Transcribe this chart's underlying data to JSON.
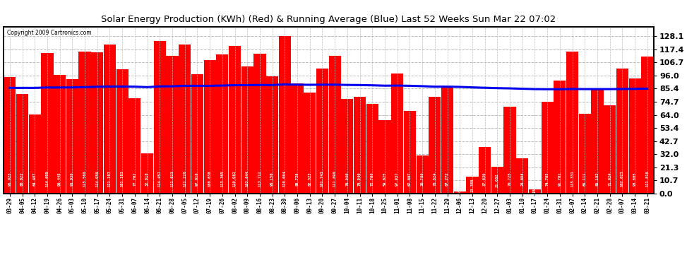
{
  "title": "Solar Energy Production (KWh) (Red) & Running Average (Blue) Last 52 Weeks Sun Mar 22 07:02",
  "copyright": "Copyright 2009 Cartronics.com",
  "bar_color": "#ff0000",
  "avg_line_color": "#0000ee",
  "background_color": "#ffffff",
  "grid_color": "#bbbbbb",
  "ylim": [
    0,
    136
  ],
  "yticks": [
    0.0,
    10.7,
    21.3,
    32.0,
    42.7,
    53.4,
    64.0,
    74.7,
    85.4,
    96.0,
    106.7,
    117.4,
    128.1
  ],
  "labels": [
    "03-29",
    "04-05",
    "04-12",
    "04-19",
    "04-26",
    "05-03",
    "05-10",
    "05-17",
    "05-24",
    "05-31",
    "06-07",
    "06-14",
    "06-21",
    "06-28",
    "07-05",
    "07-12",
    "07-19",
    "07-26",
    "08-02",
    "08-09",
    "08-16",
    "08-23",
    "08-30",
    "09-06",
    "09-13",
    "09-20",
    "09-27",
    "10-04",
    "10-11",
    "10-18",
    "10-25",
    "11-01",
    "11-08",
    "11-15",
    "11-22",
    "11-29",
    "12-06",
    "12-13",
    "12-20",
    "12-27",
    "01-03",
    "01-10",
    "01-17",
    "01-24",
    "01-31",
    "02-07",
    "02-14",
    "02-21",
    "02-28",
    "03-07",
    "03-14",
    "03-21"
  ],
  "values": [
    95.023,
    80.822,
    64.487,
    114.699,
    96.445,
    93.03,
    115.568,
    114.958,
    121.107,
    101.183,
    77.762,
    32.818,
    124.457,
    111.823,
    121.22,
    97.016,
    108.638,
    113.365,
    119.982,
    103.644,
    113.712,
    95.156,
    128.064,
    89.729,
    82.323,
    101.743,
    111.89,
    76.94,
    78.94,
    72.76,
    59.625,
    97.937,
    67.087,
    30.78,
    78.824,
    87.272,
    1.65,
    13.388,
    37.639,
    21.682,
    70.725,
    28.698,
    3.45,
    74.705,
    91.761,
    115.331,
    65.111,
    85.182,
    71.924,
    102.023,
    93.885,
    111.818
  ],
  "running_avg": [
    86.0,
    86.0,
    86.0,
    86.3,
    86.3,
    86.4,
    86.6,
    86.9,
    87.1,
    87.1,
    87.0,
    86.6,
    87.2,
    87.3,
    87.7,
    87.7,
    87.7,
    87.9,
    88.2,
    88.2,
    88.4,
    88.3,
    88.8,
    88.6,
    88.5,
    88.6,
    88.6,
    88.4,
    88.3,
    88.1,
    87.8,
    87.9,
    87.7,
    87.4,
    87.0,
    87.0,
    86.8,
    86.4,
    86.1,
    85.8,
    85.6,
    85.3,
    85.0,
    84.9,
    84.9,
    85.1,
    85.0,
    85.0,
    85.0,
    85.1,
    85.2,
    85.4
  ]
}
